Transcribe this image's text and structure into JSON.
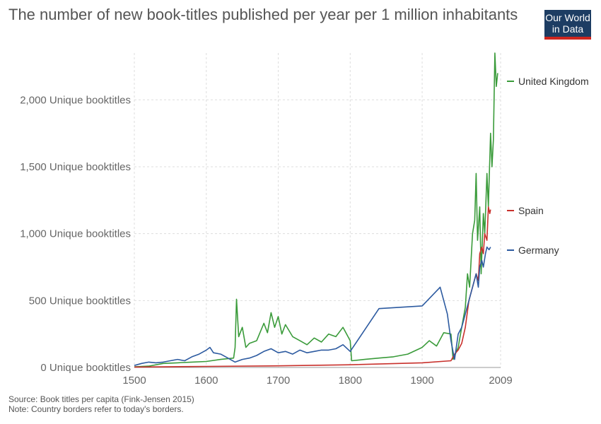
{
  "title": "The number of new book-titles published per year per 1 million inhabitants",
  "logo": {
    "line1": "Our World",
    "line2": "in Data",
    "bg": "#1d3d63",
    "accent": "#ce261e"
  },
  "footer": {
    "source": "Source: Book titles per capita (Fink-Jensen 2015)",
    "note": "Note: Country borders refer to today's borders."
  },
  "chart_data": {
    "type": "line",
    "title": "The number of new book-titles published per year per 1 million inhabitants",
    "xlabel": "",
    "ylabel": "",
    "xlim": [
      1500,
      2009
    ],
    "ylim": [
      0,
      2350
    ],
    "grid": true,
    "legend_placement": "right",
    "x_ticks": [
      {
        "value": 1500,
        "label": "1500"
      },
      {
        "value": 1600,
        "label": "1600"
      },
      {
        "value": 1700,
        "label": "1700"
      },
      {
        "value": 1800,
        "label": "1800"
      },
      {
        "value": 1900,
        "label": "1900"
      },
      {
        "value": 2009,
        "label": "2009"
      }
    ],
    "y_ticks": [
      {
        "value": 0,
        "label": "0 Unique booktitles"
      },
      {
        "value": 500,
        "label": "500 Unique booktitles"
      },
      {
        "value": 1000,
        "label": "1,000 Unique booktitles"
      },
      {
        "value": 1500,
        "label": "1,500 Unique booktitles"
      },
      {
        "value": 2000,
        "label": "2,000 Unique booktitles"
      }
    ],
    "series": [
      {
        "name": "United Kingdom",
        "color": "#3a9b3a",
        "points": [
          [
            1500,
            5
          ],
          [
            1520,
            10
          ],
          [
            1540,
            30
          ],
          [
            1560,
            35
          ],
          [
            1580,
            40
          ],
          [
            1600,
            45
          ],
          [
            1620,
            60
          ],
          [
            1638,
            70
          ],
          [
            1640,
            150
          ],
          [
            1642,
            510
          ],
          [
            1645,
            230
          ],
          [
            1650,
            300
          ],
          [
            1655,
            150
          ],
          [
            1660,
            180
          ],
          [
            1670,
            200
          ],
          [
            1680,
            330
          ],
          [
            1685,
            260
          ],
          [
            1690,
            410
          ],
          [
            1695,
            300
          ],
          [
            1700,
            380
          ],
          [
            1705,
            250
          ],
          [
            1710,
            320
          ],
          [
            1720,
            230
          ],
          [
            1730,
            200
          ],
          [
            1740,
            170
          ],
          [
            1750,
            220
          ],
          [
            1760,
            190
          ],
          [
            1770,
            250
          ],
          [
            1780,
            230
          ],
          [
            1790,
            300
          ],
          [
            1800,
            200
          ],
          [
            1802,
            50
          ],
          [
            1820,
            60
          ],
          [
            1840,
            70
          ],
          [
            1860,
            80
          ],
          [
            1880,
            100
          ],
          [
            1900,
            150
          ],
          [
            1910,
            200
          ],
          [
            1920,
            160
          ],
          [
            1930,
            260
          ],
          [
            1940,
            250
          ],
          [
            1943,
            60
          ],
          [
            1950,
            150
          ],
          [
            1955,
            300
          ],
          [
            1960,
            450
          ],
          [
            1963,
            700
          ],
          [
            1966,
            600
          ],
          [
            1970,
            1000
          ],
          [
            1973,
            1100
          ],
          [
            1975,
            1450
          ],
          [
            1977,
            950
          ],
          [
            1980,
            1200
          ],
          [
            1982,
            700
          ],
          [
            1985,
            1150
          ],
          [
            1987,
            1000
          ],
          [
            1990,
            1450
          ],
          [
            1992,
            1200
          ],
          [
            1995,
            1750
          ],
          [
            1997,
            1500
          ],
          [
            1999,
            1700
          ],
          [
            2001,
            2350
          ],
          [
            2003,
            2100
          ],
          [
            2005,
            2200
          ]
        ]
      },
      {
        "name": "Spain",
        "color": "#c8302b",
        "points": [
          [
            1500,
            3
          ],
          [
            1600,
            8
          ],
          [
            1700,
            12
          ],
          [
            1800,
            20
          ],
          [
            1900,
            35
          ],
          [
            1940,
            50
          ],
          [
            1945,
            100
          ],
          [
            1950,
            130
          ],
          [
            1955,
            180
          ],
          [
            1960,
            300
          ],
          [
            1965,
            500
          ],
          [
            1970,
            600
          ],
          [
            1975,
            700
          ],
          [
            1978,
            650
          ],
          [
            1980,
            850
          ],
          [
            1983,
            900
          ],
          [
            1985,
            850
          ],
          [
            1987,
            1000
          ],
          [
            1990,
            950
          ],
          [
            1992,
            1200
          ],
          [
            1994,
            1150
          ],
          [
            1995,
            1180
          ]
        ]
      },
      {
        "name": "Germany",
        "color": "#2c5aa0",
        "points": [
          [
            1500,
            15
          ],
          [
            1510,
            30
          ],
          [
            1520,
            40
          ],
          [
            1530,
            35
          ],
          [
            1540,
            40
          ],
          [
            1550,
            50
          ],
          [
            1560,
            60
          ],
          [
            1570,
            50
          ],
          [
            1580,
            80
          ],
          [
            1590,
            100
          ],
          [
            1600,
            130
          ],
          [
            1605,
            150
          ],
          [
            1610,
            110
          ],
          [
            1620,
            100
          ],
          [
            1630,
            70
          ],
          [
            1640,
            40
          ],
          [
            1650,
            60
          ],
          [
            1660,
            70
          ],
          [
            1670,
            90
          ],
          [
            1680,
            120
          ],
          [
            1690,
            140
          ],
          [
            1700,
            110
          ],
          [
            1710,
            120
          ],
          [
            1720,
            100
          ],
          [
            1730,
            130
          ],
          [
            1740,
            110
          ],
          [
            1750,
            120
          ],
          [
            1760,
            130
          ],
          [
            1770,
            130
          ],
          [
            1780,
            140
          ],
          [
            1790,
            170
          ],
          [
            1800,
            120
          ],
          [
            1840,
            440
          ],
          [
            1900,
            460
          ],
          [
            1925,
            600
          ],
          [
            1935,
            400
          ],
          [
            1940,
            200
          ],
          [
            1945,
            60
          ],
          [
            1950,
            250
          ],
          [
            1955,
            300
          ],
          [
            1960,
            400
          ],
          [
            1965,
            500
          ],
          [
            1970,
            600
          ],
          [
            1975,
            700
          ],
          [
            1978,
            600
          ],
          [
            1980,
            750
          ],
          [
            1983,
            800
          ],
          [
            1985,
            750
          ],
          [
            1988,
            850
          ],
          [
            1990,
            900
          ],
          [
            1993,
            880
          ],
          [
            1995,
            900
          ]
        ]
      }
    ]
  }
}
